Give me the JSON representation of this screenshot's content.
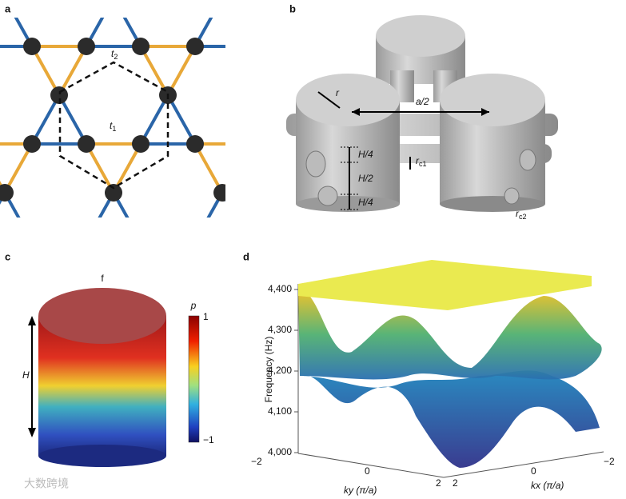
{
  "panels": {
    "a": {
      "label": "a",
      "t1": "t",
      "t1_sub": "1",
      "t2": "t",
      "t2_sub": "2"
    },
    "b": {
      "label": "b",
      "r": "r",
      "a_half": "a/2",
      "h_top": "H/4",
      "h_mid": "H/2",
      "h_bot": "H/4",
      "rc1": "r",
      "rc1_sub": "c1",
      "rc2": "r",
      "rc2_sub": "c2"
    },
    "c": {
      "label": "c",
      "f": "f",
      "H": "H",
      "p": "p",
      "cb_max": "1",
      "cb_min": "−1"
    },
    "d": {
      "label": "d",
      "z_label": "Frequency (Hz)",
      "z_ticks": [
        "4,400",
        "4,300",
        "4,200",
        "4,100",
        "4,000"
      ],
      "ky_label": "ky (π/a)",
      "ky_ticks": [
        "−2",
        "0",
        "2"
      ],
      "kx_label": "kx (π/a)",
      "kx_ticks": [
        "2",
        "0",
        "−2"
      ]
    }
  },
  "watermark": "大数跨境"
}
